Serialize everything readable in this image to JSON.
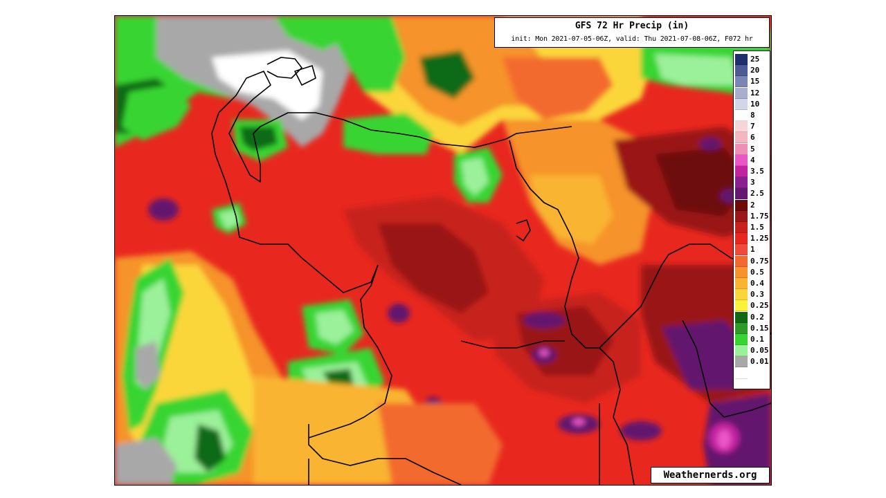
{
  "map": {
    "title": "GFS 72 Hr Precip (in)",
    "subtitle": "init: Mon 2021-07-05-06Z, valid: Thu 2021-07-08-06Z, F072 hr",
    "watermark": "Weathernerds.org",
    "legend": [
      {
        "label": "25",
        "color": "#1f2f6b"
      },
      {
        "label": "20",
        "color": "#4d5a94"
      },
      {
        "label": "15",
        "color": "#7b85b5"
      },
      {
        "label": "12",
        "color": "#a7aed0"
      },
      {
        "label": "10",
        "color": "#d2d6e8"
      },
      {
        "label": "8",
        "color": "#ffffff"
      },
      {
        "label": "7",
        "color": "#f7d4d9"
      },
      {
        "label": "6",
        "color": "#f4b6bf"
      },
      {
        "label": "5",
        "color": "#f08fb6"
      },
      {
        "label": "4",
        "color": "#ea55c7"
      },
      {
        "label": "3.5",
        "color": "#c2239f"
      },
      {
        "label": "3",
        "color": "#8a1f8f"
      },
      {
        "label": "2.5",
        "color": "#63196e"
      },
      {
        "label": "2",
        "color": "#6e0b0b"
      },
      {
        "label": "1.75",
        "color": "#9a1818"
      },
      {
        "label": "1.5",
        "color": "#c8201c"
      },
      {
        "label": "1.25",
        "color": "#e8281f"
      },
      {
        "label": "1",
        "color": "#f04a38"
      },
      {
        "label": "0.75",
        "color": "#f36a2e"
      },
      {
        "label": "0.5",
        "color": "#f6932b"
      },
      {
        "label": "0.4",
        "color": "#f9b432"
      },
      {
        "label": "0.3",
        "color": "#fbd63a"
      },
      {
        "label": "0.25",
        "color": "#fbf23c"
      },
      {
        "label": "0.2",
        "color": "#0f6a12"
      },
      {
        "label": "0.15",
        "color": "#2e9a27"
      },
      {
        "label": "0.1",
        "color": "#38d532"
      },
      {
        "label": "0.05",
        "color": "#9bf09a"
      },
      {
        "label": "0.01",
        "color": "#a8a8a8"
      },
      {
        "label": "",
        "color": "#ffffff"
      }
    ]
  }
}
